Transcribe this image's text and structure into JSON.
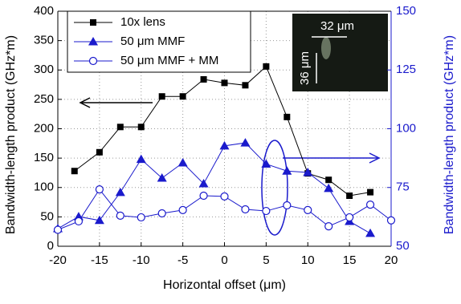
{
  "chart_data": {
    "type": "line",
    "xlabel": "Horizontal offset (μm)",
    "ylabel": "Bandwidth-length product (GHz*m)",
    "y2label": "Bandwidth-length product (GHz*m)",
    "xlim": [
      -20,
      20
    ],
    "xticks": [
      -20,
      -15,
      -10,
      -5,
      0,
      5,
      10,
      15,
      20
    ],
    "ylim": [
      0,
      400
    ],
    "yticks": [
      0,
      50,
      100,
      150,
      200,
      250,
      300,
      350,
      400
    ],
    "y2lim": [
      50,
      150
    ],
    "y2ticks": [
      50,
      75,
      100,
      125,
      150
    ],
    "grid": true,
    "legend": "upper left",
    "y2color": "#1a1acc",
    "annotations": [
      "32 μm",
      "36 μm"
    ],
    "series": [
      {
        "name": "10x lens",
        "color": "#000000",
        "marker": "square",
        "x": [
          -18,
          -15,
          -12.5,
          -10,
          -7.5,
          -5,
          -2.5,
          0,
          2.5,
          5,
          7.5,
          10,
          12.5,
          15,
          17.5
        ],
        "values": [
          128,
          160,
          203,
          203,
          255,
          255,
          284,
          278,
          274,
          306,
          220,
          124,
          113,
          86,
          92
        ]
      },
      {
        "name": "50 μm MMF",
        "color": "#1a1acc",
        "marker": "triangle",
        "axis": "y2",
        "x": [
          -20,
          -17.5,
          -15,
          -12.5,
          -10,
          -7.5,
          -5,
          -2.5,
          0,
          2.5,
          5,
          7.5,
          10,
          12.5,
          15,
          17.5
        ],
        "values": [
          57.5,
          62.6,
          61,
          72.9,
          87,
          79,
          85.5,
          76.6,
          92.7,
          94,
          85,
          82,
          81.4,
          74.6,
          60.6,
          55.5
        ]
      },
      {
        "name": "50 μm MMF + MM",
        "color": "#1a1acc",
        "marker": "open-circle",
        "axis": "y2",
        "x": [
          -20,
          -17.5,
          -15,
          -12.5,
          -10,
          -7.5,
          -5,
          -2.5,
          0,
          2.5,
          5,
          7.5,
          10,
          12.5,
          15,
          17.5,
          20
        ],
        "values": [
          57,
          60.6,
          74.2,
          63,
          62.3,
          64,
          65.4,
          71.5,
          71.2,
          65.7,
          65,
          67.4,
          65.4,
          58.5,
          62.3,
          67.7,
          61
        ]
      }
    ]
  }
}
